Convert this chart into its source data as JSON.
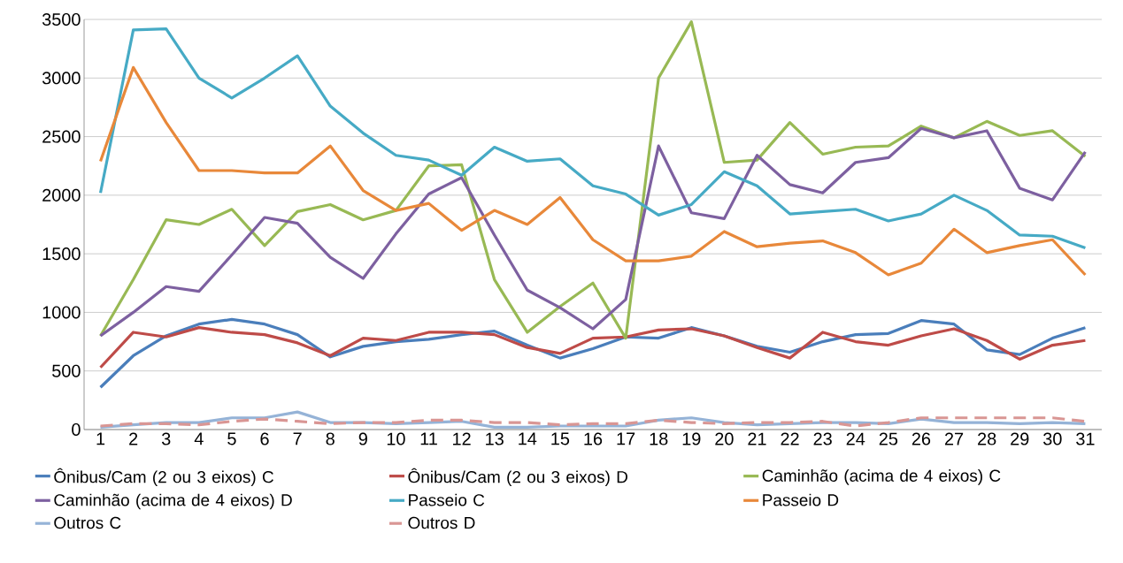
{
  "chart_data": {
    "type": "line",
    "categories": [
      "1",
      "2",
      "3",
      "4",
      "5",
      "6",
      "7",
      "8",
      "9",
      "10",
      "11",
      "12",
      "13",
      "14",
      "15",
      "16",
      "17",
      "18",
      "19",
      "20",
      "21",
      "22",
      "23",
      "24",
      "25",
      "26",
      "27",
      "28",
      "29",
      "30",
      "31"
    ],
    "ylim": [
      0,
      3500
    ],
    "yticks": [
      0,
      500,
      1000,
      1500,
      2000,
      2500,
      3000,
      3500
    ],
    "grid": "y",
    "legend": "bottom",
    "marker": "none",
    "line_style": "solid",
    "series": [
      {
        "name": "Ônibus/Cam (2 ou 3 eixos) C",
        "color": "#4a7ebb",
        "values": [
          360,
          630,
          800,
          900,
          940,
          900,
          810,
          620,
          710,
          750,
          770,
          810,
          840,
          720,
          610,
          690,
          790,
          780,
          870,
          800,
          710,
          660,
          750,
          810,
          820,
          930,
          900,
          680,
          640,
          780,
          870
        ]
      },
      {
        "name": "Ônibus/Cam (2 ou 3 eixos) D",
        "color": "#be4b48",
        "values": [
          530,
          830,
          790,
          870,
          830,
          810,
          740,
          630,
          780,
          760,
          830,
          830,
          810,
          700,
          650,
          780,
          790,
          850,
          860,
          800,
          700,
          610,
          830,
          750,
          720,
          800,
          860,
          760,
          600,
          720,
          760
        ]
      },
      {
        "name": "Caminhão (acima de 4 eixos) C",
        "color": "#98b954",
        "values": [
          800,
          1280,
          1790,
          1750,
          1880,
          1570,
          1860,
          1920,
          1790,
          1870,
          2250,
          2260,
          1280,
          830,
          1050,
          1250,
          780,
          3000,
          3480,
          2280,
          2300,
          2620,
          2350,
          2410,
          2420,
          2590,
          2490,
          2630,
          2510,
          2550,
          2330
        ]
      },
      {
        "name": "Caminhão (acima de 4 eixos) D",
        "color": "#7d60a0",
        "values": [
          800,
          1000,
          1220,
          1180,
          1490,
          1810,
          1760,
          1470,
          1290,
          1670,
          2010,
          2150,
          1660,
          1190,
          1040,
          860,
          1110,
          2420,
          1850,
          1800,
          2340,
          2090,
          2020,
          2280,
          2320,
          2570,
          2490,
          2550,
          2060,
          1960,
          2370
        ]
      },
      {
        "name": "Passeio C",
        "color": "#46aac5",
        "values": [
          2020,
          3410,
          3420,
          3000,
          2830,
          3000,
          3190,
          2760,
          2530,
          2340,
          2300,
          2170,
          2410,
          2290,
          2310,
          2080,
          2010,
          1830,
          1920,
          2200,
          2080,
          1840,
          1860,
          1880,
          1780,
          1840,
          2000,
          1870,
          1660,
          1650,
          1550
        ]
      },
      {
        "name": "Passeio D",
        "color": "#e8883a",
        "values": [
          2290,
          3090,
          2620,
          2210,
          2210,
          2190,
          2190,
          2420,
          2040,
          1870,
          1930,
          1700,
          1870,
          1750,
          1980,
          1620,
          1440,
          1440,
          1480,
          1690,
          1560,
          1590,
          1610,
          1510,
          1320,
          1420,
          1710,
          1510,
          1570,
          1620,
          1320
        ]
      },
      {
        "name": "Outros C",
        "color": "#95b3d7",
        "values": [
          20,
          40,
          60,
          60,
          100,
          100,
          150,
          60,
          60,
          50,
          60,
          70,
          20,
          20,
          30,
          30,
          30,
          80,
          100,
          60,
          40,
          50,
          60,
          60,
          50,
          90,
          60,
          60,
          50,
          60,
          50
        ]
      },
      {
        "name": "Outros D",
        "color": "#d99694",
        "line_style": "dashed",
        "values": [
          30,
          50,
          50,
          40,
          70,
          90,
          70,
          50,
          60,
          60,
          80,
          80,
          60,
          60,
          40,
          50,
          50,
          80,
          60,
          50,
          60,
          60,
          70,
          30,
          60,
          100,
          100,
          100,
          100,
          100,
          70
        ]
      }
    ]
  }
}
